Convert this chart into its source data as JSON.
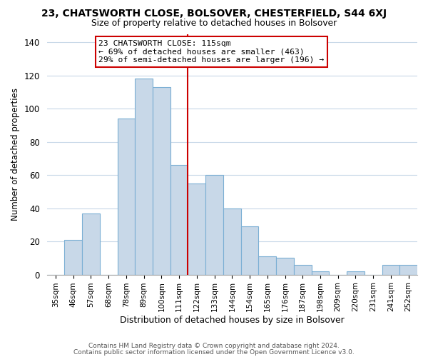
{
  "title": "23, CHATSWORTH CLOSE, BOLSOVER, CHESTERFIELD, S44 6XJ",
  "subtitle": "Size of property relative to detached houses in Bolsover",
  "xlabel": "Distribution of detached houses by size in Bolsover",
  "ylabel": "Number of detached properties",
  "bar_labels": [
    "35sqm",
    "46sqm",
    "57sqm",
    "68sqm",
    "78sqm",
    "89sqm",
    "100sqm",
    "111sqm",
    "122sqm",
    "133sqm",
    "144sqm",
    "154sqm",
    "165sqm",
    "176sqm",
    "187sqm",
    "198sqm",
    "209sqm",
    "220sqm",
    "231sqm",
    "241sqm",
    "252sqm"
  ],
  "bar_values": [
    0,
    21,
    37,
    0,
    94,
    118,
    113,
    66,
    55,
    60,
    40,
    29,
    11,
    10,
    6,
    2,
    0,
    2,
    0,
    6,
    6
  ],
  "bar_color": "#c8d8e8",
  "bar_edge_color": "#7bafd4",
  "vline_x": 7.5,
  "vline_color": "#cc0000",
  "annotation_title": "23 CHATSWORTH CLOSE: 115sqm",
  "annotation_line1": "← 69% of detached houses are smaller (463)",
  "annotation_line2": "29% of semi-detached houses are larger (196) →",
  "annotation_box_color": "#ffffff",
  "annotation_box_edge": "#cc0000",
  "ylim": [
    0,
    145
  ],
  "footnote1": "Contains HM Land Registry data © Crown copyright and database right 2024.",
  "footnote2": "Contains public sector information licensed under the Open Government Licence v3.0.",
  "bg_color": "#ffffff",
  "grid_color": "#c8d8e8"
}
